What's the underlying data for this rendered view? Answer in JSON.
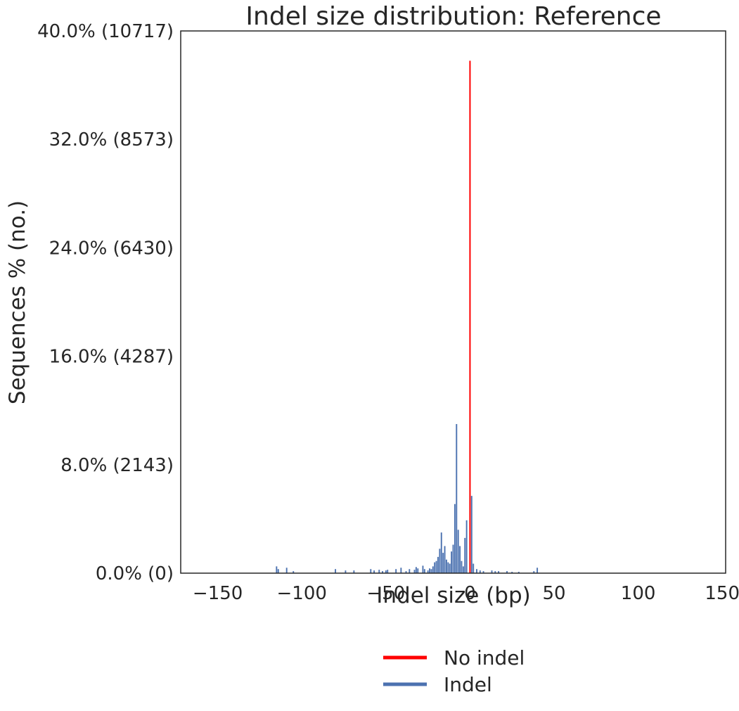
{
  "chart_data": {
    "type": "bar",
    "title": "Indel size distribution: Reference",
    "xlabel": "Indel size (bp)",
    "ylabel": "Sequences % (no.)",
    "xlim": [
      -172,
      152
    ],
    "ylim": [
      0,
      40
    ],
    "grid": false,
    "legend_position": "bottom-center",
    "x_ticks": [
      {
        "value": -150,
        "label": "−150"
      },
      {
        "value": -100,
        "label": "−100"
      },
      {
        "value": -50,
        "label": "−50"
      },
      {
        "value": 0,
        "label": "0"
      },
      {
        "value": 50,
        "label": "50"
      },
      {
        "value": 100,
        "label": "100"
      },
      {
        "value": 150,
        "label": "150"
      }
    ],
    "y_ticks": [
      {
        "value": 0,
        "label": "0.0% (0)"
      },
      {
        "value": 8,
        "label": "8.0% (2143)"
      },
      {
        "value": 16,
        "label": "16.0% (4287)"
      },
      {
        "value": 24,
        "label": "24.0% (6430)"
      },
      {
        "value": 32,
        "label": "32.0% (8573)"
      },
      {
        "value": 40,
        "label": "40.0% (10717)"
      }
    ],
    "series": [
      {
        "name": "No indel",
        "color": "#ff0000",
        "style": "line",
        "points": [
          {
            "x": 0,
            "y": 37.8
          }
        ]
      },
      {
        "name": "Indel",
        "color": "#4c72b0",
        "style": "bar",
        "points": [
          {
            "x": -115,
            "y": 0.5
          },
          {
            "x": -114,
            "y": 0.3
          },
          {
            "x": -109,
            "y": 0.4
          },
          {
            "x": -105,
            "y": 0.15
          },
          {
            "x": -80,
            "y": 0.3
          },
          {
            "x": -74,
            "y": 0.2
          },
          {
            "x": -69,
            "y": 0.2
          },
          {
            "x": -59,
            "y": 0.3
          },
          {
            "x": -57,
            "y": 0.2
          },
          {
            "x": -54,
            "y": 0.25
          },
          {
            "x": -52,
            "y": 0.15
          },
          {
            "x": -50,
            "y": 0.2
          },
          {
            "x": -49,
            "y": 0.25
          },
          {
            "x": -44,
            "y": 0.3
          },
          {
            "x": -41,
            "y": 0.4
          },
          {
            "x": -38,
            "y": 0.15
          },
          {
            "x": -36,
            "y": 0.3
          },
          {
            "x": -33,
            "y": 0.25
          },
          {
            "x": -32,
            "y": 0.45
          },
          {
            "x": -31,
            "y": 0.35
          },
          {
            "x": -28,
            "y": 0.55
          },
          {
            "x": -27,
            "y": 0.3
          },
          {
            "x": -25,
            "y": 0.2
          },
          {
            "x": -24,
            "y": 0.35
          },
          {
            "x": -23,
            "y": 0.3
          },
          {
            "x": -22,
            "y": 0.5
          },
          {
            "x": -21,
            "y": 0.8
          },
          {
            "x": -20,
            "y": 0.9
          },
          {
            "x": -19,
            "y": 1.2
          },
          {
            "x": -18,
            "y": 1.8
          },
          {
            "x": -17,
            "y": 3.0
          },
          {
            "x": -16,
            "y": 1.5
          },
          {
            "x": -15,
            "y": 2.0
          },
          {
            "x": -14,
            "y": 1.0
          },
          {
            "x": -13,
            "y": 0.8
          },
          {
            "x": -12,
            "y": 0.7
          },
          {
            "x": -11,
            "y": 1.6
          },
          {
            "x": -10,
            "y": 2.1
          },
          {
            "x": -9,
            "y": 5.1
          },
          {
            "x": -8,
            "y": 11.0
          },
          {
            "x": -7,
            "y": 3.2
          },
          {
            "x": -6,
            "y": 2.0
          },
          {
            "x": -5,
            "y": 0.9
          },
          {
            "x": -4,
            "y": 0.5
          },
          {
            "x": -3,
            "y": 2.6
          },
          {
            "x": -2,
            "y": 3.9
          },
          {
            "x": 1,
            "y": 5.7
          },
          {
            "x": 2,
            "y": 0.7
          },
          {
            "x": 4,
            "y": 0.3
          },
          {
            "x": 6,
            "y": 0.2
          },
          {
            "x": 8,
            "y": 0.15
          },
          {
            "x": 13,
            "y": 0.2
          },
          {
            "x": 15,
            "y": 0.15
          },
          {
            "x": 17,
            "y": 0.15
          },
          {
            "x": 22,
            "y": 0.15
          },
          {
            "x": 25,
            "y": 0.1
          },
          {
            "x": 29,
            "y": 0.1
          },
          {
            "x": 38,
            "y": 0.15
          },
          {
            "x": 40,
            "y": 0.4
          }
        ]
      }
    ]
  }
}
